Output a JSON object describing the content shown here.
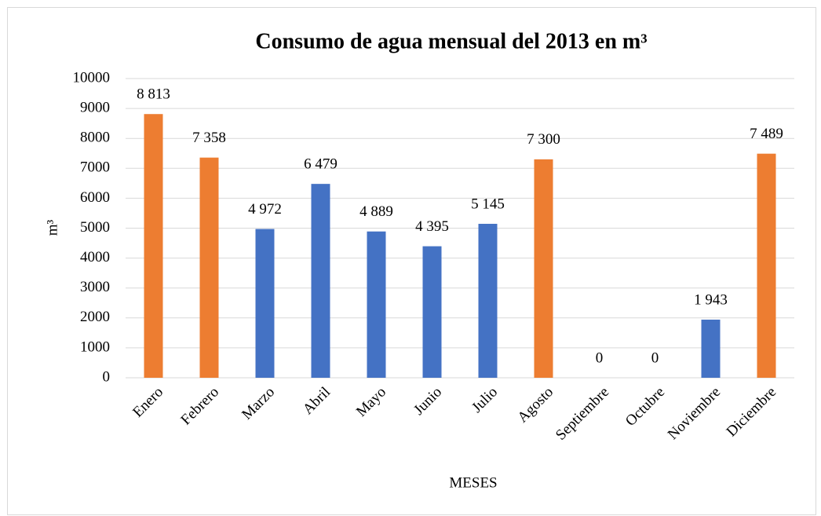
{
  "chart_data": {
    "type": "bar",
    "title": "Consumo de agua mensual del 2013 en m³",
    "xlabel": "MESES",
    "ylabel": "m³",
    "categories": [
      "Enero",
      "Febrero",
      "Marzo",
      "Abril",
      "Mayo",
      "Junio",
      "Julio",
      "Agosto",
      "Septiembre",
      "Octubre",
      "Noviembre",
      "Diciembre"
    ],
    "values": [
      8813,
      7358,
      4972,
      6479,
      4889,
      4395,
      5145,
      7300,
      0,
      0,
      1943,
      7489
    ],
    "value_labels": [
      "8 813",
      "7 358",
      "4 972",
      "6 479",
      "4 889",
      "4 395",
      "5 145",
      "7 300",
      "0",
      "0",
      "1 943",
      "7 489"
    ],
    "colors": [
      "#ed7d31",
      "#ed7d31",
      "#4472c4",
      "#4472c4",
      "#4472c4",
      "#4472c4",
      "#4472c4",
      "#ed7d31",
      "#4472c4",
      "#4472c4",
      "#4472c4",
      "#ed7d31"
    ],
    "ylim": [
      0,
      10000
    ],
    "yticks": [
      0,
      1000,
      2000,
      3000,
      4000,
      5000,
      6000,
      7000,
      8000,
      9000,
      10000
    ],
    "grid": true
  }
}
